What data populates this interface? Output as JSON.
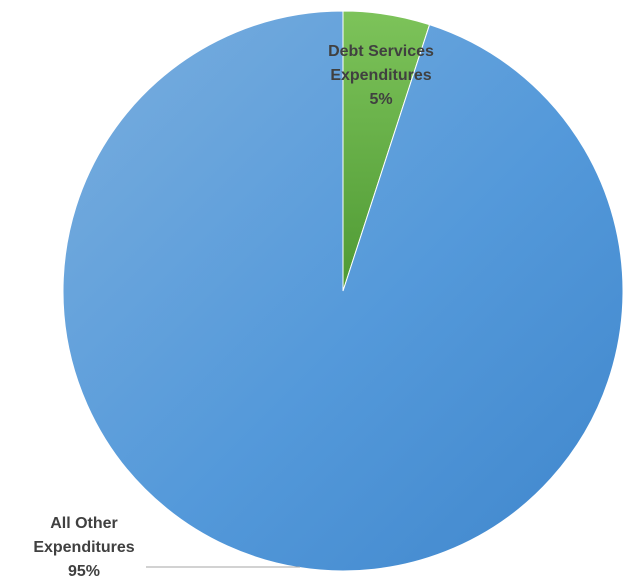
{
  "chart_data": {
    "type": "pie",
    "title": "",
    "slices": [
      {
        "name": "Debt Services Expenditures",
        "label_lines": [
          "Debt Services",
          "Expenditures"
        ],
        "value": 5,
        "percent_label": "5%",
        "color": "#6ab04c"
      },
      {
        "name": "All Other Expenditures",
        "label_lines": [
          "All Other",
          "Expenditures"
        ],
        "value": 95,
        "percent_label": "95%",
        "color": "#5b9bd5"
      }
    ],
    "start": "12 o'clock",
    "direction": "clockwise",
    "legend": "none",
    "data_labels": true
  }
}
